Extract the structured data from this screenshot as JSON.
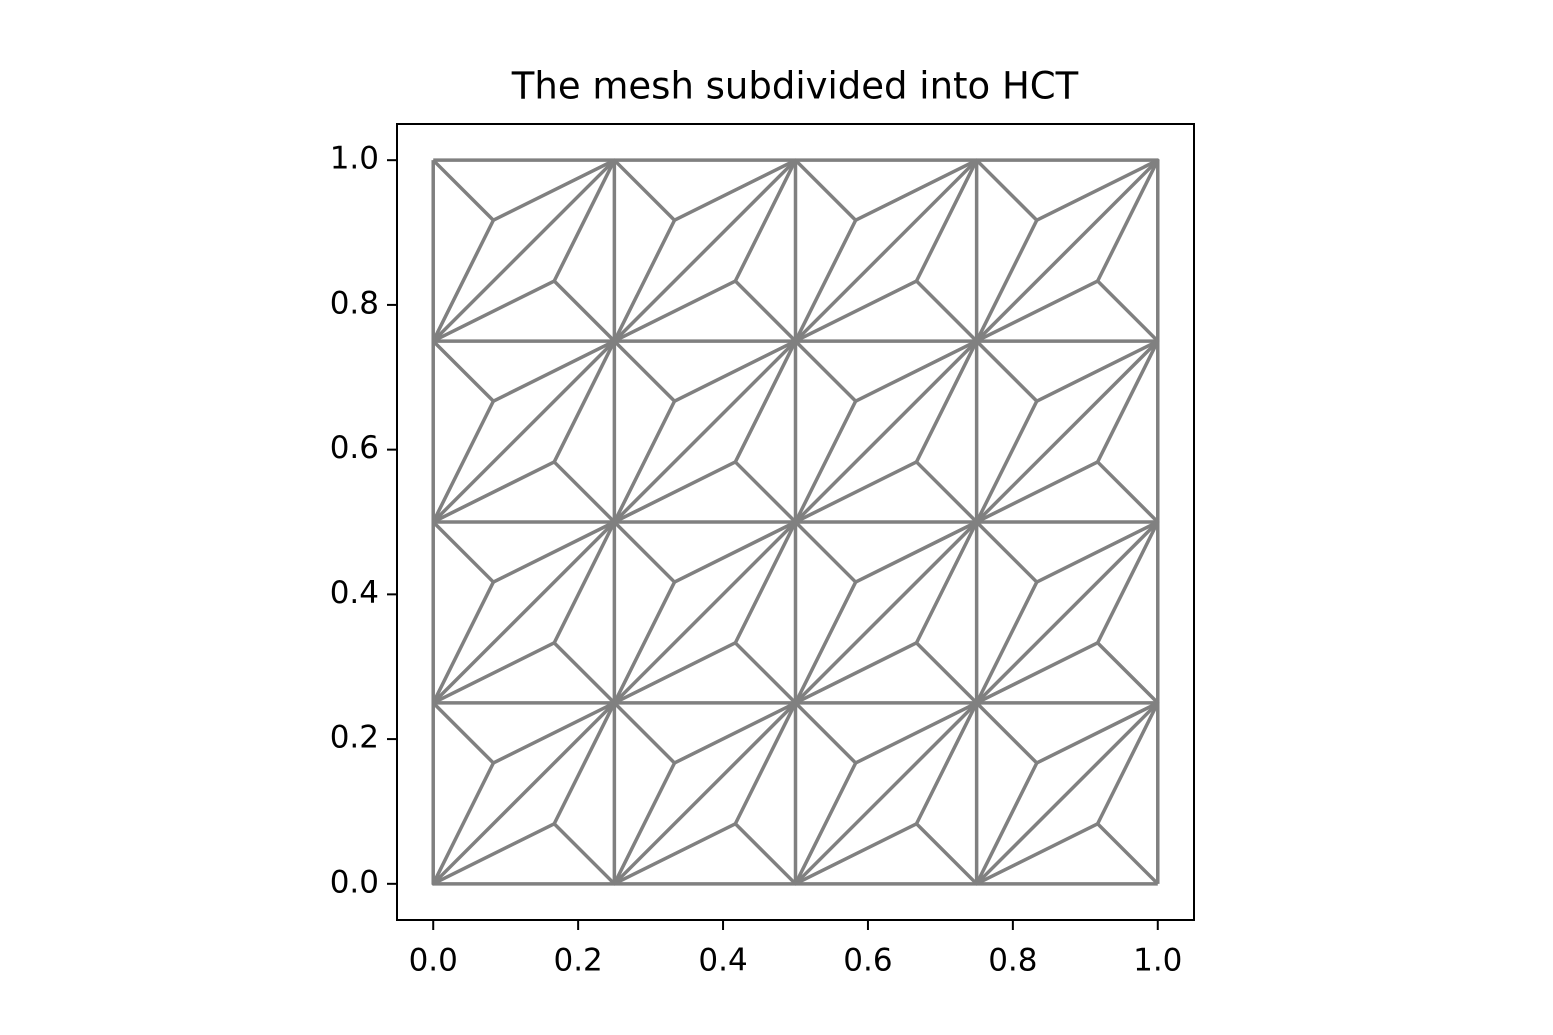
{
  "chart_data": {
    "type": "triplot",
    "title": "The mesh subdivided into HCT",
    "color": "#808080",
    "xlim": [
      -0.05,
      1.05
    ],
    "ylim": [
      -0.05,
      1.05
    ],
    "xticks": [
      {
        "value": 0,
        "label": "0.0"
      },
      0.2,
      0.4,
      0.6,
      0.8,
      {
        "value": 1,
        "label": "1.0"
      }
    ],
    "yticks": [
      {
        "value": 0,
        "label": "0.0"
      },
      0.2,
      0.4,
      0.6,
      0.8,
      {
        "value": 1,
        "label": "1.0"
      }
    ],
    "lines": [
      {
        "x": [
          0,
          1
        ],
        "y": [
          0,
          0
        ]
      },
      {
        "x": [
          0,
          1
        ],
        "y": [
          0.25,
          0.25
        ]
      },
      {
        "x": [
          0,
          1
        ],
        "y": [
          0.5,
          0.5
        ]
      },
      {
        "x": [
          0,
          1
        ],
        "y": [
          0.75,
          0.75
        ]
      },
      {
        "x": [
          0,
          1
        ],
        "y": [
          1,
          1
        ]
      },
      {
        "x": [
          0,
          0
        ],
        "y": [
          0,
          1
        ]
      },
      {
        "x": [
          0.25,
          0.25
        ],
        "y": [
          0,
          1
        ]
      },
      {
        "x": [
          0.5,
          0.5
        ],
        "y": [
          0,
          1
        ]
      },
      {
        "x": [
          0.75,
          0.75
        ],
        "y": [
          0,
          1
        ]
      },
      {
        "x": [
          1,
          1
        ],
        "y": [
          0,
          1
        ]
      },
      {
        "x": [
          0,
          1
        ],
        "y": [
          0,
          1
        ]
      },
      {
        "x": [
          0,
          0.75
        ],
        "y": [
          0.25,
          1
        ]
      },
      {
        "x": [
          0,
          0.5
        ],
        "y": [
          0.5,
          1
        ]
      },
      {
        "x": [
          0,
          0.25
        ],
        "y": [
          0.75,
          1
        ]
      },
      {
        "x": [
          0.25,
          1
        ],
        "y": [
          0,
          0.75
        ]
      },
      {
        "x": [
          0.5,
          1
        ],
        "y": [
          0,
          0.5
        ]
      },
      {
        "x": [
          0.75,
          1
        ],
        "y": [
          0,
          0.25
        ]
      },
      {
        "x": [
          0.25,
          0.167,
          0,
          0.083,
          0
        ],
        "y": [
          0,
          0.083,
          0,
          0.167,
          0.25
        ]
      },
      {
        "x": [
          0.167,
          0.25,
          0.083
        ],
        "y": [
          0.083,
          0.25,
          0.167
        ]
      },
      {
        "x": [
          0.5,
          0.417,
          0.25,
          0.333,
          0.25
        ],
        "y": [
          0,
          0.083,
          0,
          0.167,
          0.25
        ]
      },
      {
        "x": [
          0.417,
          0.5,
          0.333
        ],
        "y": [
          0.083,
          0.25,
          0.167
        ]
      },
      {
        "x": [
          0.75,
          0.667,
          0.5,
          0.583,
          0.5
        ],
        "y": [
          0,
          0.083,
          0,
          0.167,
          0.25
        ]
      },
      {
        "x": [
          0.667,
          0.75,
          0.583
        ],
        "y": [
          0.083,
          0.25,
          0.167
        ]
      },
      {
        "x": [
          1,
          0.917,
          0.75,
          0.833,
          0.75
        ],
        "y": [
          0,
          0.083,
          0,
          0.167,
          0.25
        ]
      },
      {
        "x": [
          0.917,
          1,
          0.833
        ],
        "y": [
          0.083,
          0.25,
          0.167
        ]
      },
      {
        "x": [
          0.25,
          0.167,
          0,
          0.083,
          0
        ],
        "y": [
          0.25,
          0.333,
          0.25,
          0.417,
          0.5
        ]
      },
      {
        "x": [
          0.167,
          0.25,
          0.083
        ],
        "y": [
          0.333,
          0.5,
          0.417
        ]
      },
      {
        "x": [
          0.5,
          0.417,
          0.25,
          0.333,
          0.25
        ],
        "y": [
          0.25,
          0.333,
          0.25,
          0.417,
          0.5
        ]
      },
      {
        "x": [
          0.417,
          0.5,
          0.333
        ],
        "y": [
          0.333,
          0.5,
          0.417
        ]
      },
      {
        "x": [
          0.75,
          0.667,
          0.5,
          0.583,
          0.5
        ],
        "y": [
          0.25,
          0.333,
          0.25,
          0.417,
          0.5
        ]
      },
      {
        "x": [
          0.667,
          0.75,
          0.583
        ],
        "y": [
          0.333,
          0.5,
          0.417
        ]
      },
      {
        "x": [
          1,
          0.917,
          0.75,
          0.833,
          0.75
        ],
        "y": [
          0.25,
          0.333,
          0.25,
          0.417,
          0.5
        ]
      },
      {
        "x": [
          0.917,
          1,
          0.833
        ],
        "y": [
          0.333,
          0.5,
          0.417
        ]
      },
      {
        "x": [
          0.25,
          0.167,
          0,
          0.083,
          0
        ],
        "y": [
          0.5,
          0.583,
          0.5,
          0.667,
          0.75
        ]
      },
      {
        "x": [
          0.167,
          0.25,
          0.083
        ],
        "y": [
          0.583,
          0.75,
          0.667
        ]
      },
      {
        "x": [
          0.5,
          0.417,
          0.25,
          0.333,
          0.25
        ],
        "y": [
          0.5,
          0.583,
          0.5,
          0.667,
          0.75
        ]
      },
      {
        "x": [
          0.417,
          0.5,
          0.333
        ],
        "y": [
          0.583,
          0.75,
          0.667
        ]
      },
      {
        "x": [
          0.75,
          0.667,
          0.5,
          0.583,
          0.5
        ],
        "y": [
          0.5,
          0.583,
          0.5,
          0.667,
          0.75
        ]
      },
      {
        "x": [
          0.667,
          0.75,
          0.583
        ],
        "y": [
          0.583,
          0.75,
          0.667
        ]
      },
      {
        "x": [
          1,
          0.917,
          0.75,
          0.833,
          0.75
        ],
        "y": [
          0.5,
          0.583,
          0.5,
          0.667,
          0.75
        ]
      },
      {
        "x": [
          0.917,
          1,
          0.833
        ],
        "y": [
          0.583,
          0.75,
          0.667
        ]
      },
      {
        "x": [
          0.25,
          0.167,
          0,
          0.083,
          0
        ],
        "y": [
          0.75,
          0.833,
          0.75,
          0.917,
          1
        ]
      },
      {
        "x": [
          0.167,
          0.25,
          0.083
        ],
        "y": [
          0.833,
          1,
          0.917
        ]
      },
      {
        "x": [
          0.5,
          0.417,
          0.25,
          0.333,
          0.25
        ],
        "y": [
          0.75,
          0.833,
          0.75,
          0.917,
          1
        ]
      },
      {
        "x": [
          0.417,
          0.5,
          0.333
        ],
        "y": [
          0.833,
          1,
          0.917
        ]
      },
      {
        "x": [
          0.75,
          0.667,
          0.5,
          0.583,
          0.5
        ],
        "y": [
          0.75,
          0.833,
          0.75,
          0.917,
          1
        ]
      },
      {
        "x": [
          0.667,
          0.75,
          0.583
        ],
        "y": [
          0.833,
          1,
          0.917
        ]
      },
      {
        "x": [
          1,
          0.917,
          0.75,
          0.833,
          0.75
        ],
        "y": [
          0.75,
          0.833,
          0.75,
          0.917,
          1
        ]
      },
      {
        "x": [
          0.917,
          1,
          0.833
        ],
        "y": [
          0.833,
          1,
          0.917
        ]
      }
    ]
  }
}
